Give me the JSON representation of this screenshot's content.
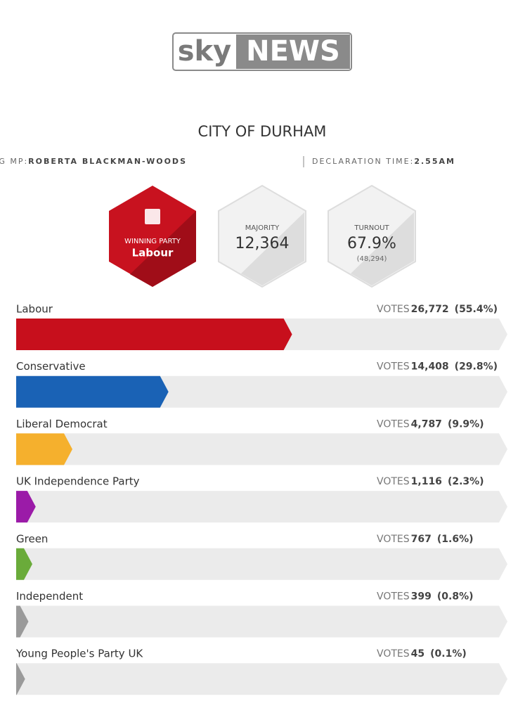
{
  "header": {
    "logo_sky": "sky",
    "logo_news": "NEWS",
    "title": "CITY OF DURHAM",
    "winning_mp_label": "WINNING MP:",
    "winning_mp": "ROBERTA BLACKMAN-WOODS",
    "declaration_label": "DECLARATION TIME:",
    "declaration_time": "2.55AM"
  },
  "stats": {
    "winning_party_label": "WINNING PARTY",
    "winning_party": "Labour",
    "majority_label": "MAJORITY",
    "majority": "12,364",
    "turnout_label": "TURNOUT",
    "turnout": "67.9%",
    "turnout_votes": "(48,294)"
  },
  "chart_data": {
    "type": "bar",
    "orientation": "horizontal",
    "votes_label": "VOTES",
    "categories": [
      "Labour",
      "Conservative",
      "Liberal Democrat",
      "UK Independence Party",
      "Green",
      "Independent",
      "Young People's Party UK"
    ],
    "values": [
      26772,
      14408,
      4787,
      1116,
      767,
      399,
      45
    ],
    "value_labels": [
      "26,772",
      "14,408",
      "4,787",
      "1,116",
      "767",
      "399",
      "45"
    ],
    "percents": [
      55.4,
      29.8,
      9.9,
      2.3,
      1.6,
      0.8,
      0.1
    ],
    "percent_labels": [
      "(55.4%)",
      "(29.8%)",
      "(9.9%)",
      "(2.3%)",
      "(1.6%)",
      "(0.8%)",
      "(0.1%)"
    ],
    "colors": [
      "#c70f1c",
      "#1a62b5",
      "#f5b02d",
      "#9b1ba8",
      "#6aab3a",
      "#9a9a9a",
      "#9a9a9a"
    ],
    "xlim": [
      0,
      100
    ]
  }
}
